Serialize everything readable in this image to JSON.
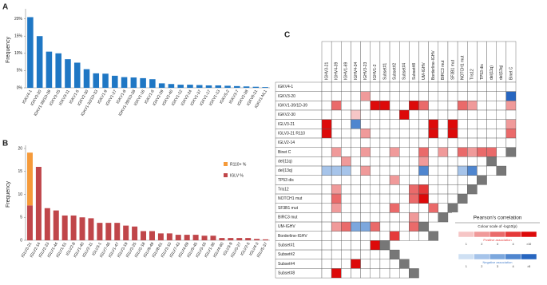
{
  "chart_data": [
    {
      "type": "bar",
      "panel_label": "A",
      "y_label": "Frequency",
      "color": "#1f77c4",
      "categories": [
        "IGKV4-1",
        "IGKV3-20",
        "IGKV1-39/1D-39",
        "IGKV3-15",
        "IGKV3-11",
        "IGKV1-5",
        "IGKV2-30",
        "IGKV1-33/1D-33",
        "IGKV1-9",
        "IGKV1-27",
        "IGKV1-8",
        "IGKV1-28/1D-28",
        "IGKV1-16",
        "IGKV1-6",
        "IGKV2-29",
        "IGKV2-40",
        "IGKV1-12",
        "IGKV2-24",
        "IGKV1-37",
        "IGKV1-17",
        "IGKV1-13",
        "IGKV5-2",
        "IGKV3-7",
        "IGKV2-28",
        "IGKV6-21",
        "IGKV1-NL1"
      ],
      "values": [
        20.5,
        15,
        10.5,
        10,
        8.3,
        7.3,
        5.4,
        4.2,
        4.1,
        3.5,
        3.1,
        3,
        2.8,
        2.5,
        1.3,
        1.1,
        0.9,
        0.9,
        0.8,
        0.7,
        0.7,
        0.6,
        0.5,
        0.4,
        0.3,
        0.2
      ],
      "ylim": [
        0,
        22
      ],
      "yticks": [
        {
          "value": 0,
          "label": "0%"
        },
        {
          "value": 5,
          "label": "5%"
        },
        {
          "value": 10,
          "label": "10%"
        },
        {
          "value": 15,
          "label": "15%"
        },
        {
          "value": 20,
          "label": "20%"
        }
      ]
    },
    {
      "type": "bar",
      "panel_label": "B",
      "y_label": "Frequency",
      "categories": [
        "IGLV3-21",
        "IGLV2-14",
        "IGLV2-23",
        "IGLV1-44",
        "IGLV1-51",
        "IGLV2-8",
        "IGLV1-40",
        "IGLV2-11",
        "IGLV3-1",
        "IGLV7-46",
        "IGLV1-47",
        "IGLV3-19",
        "IGLV3-25",
        "IGLV2-18",
        "IGLV9-49",
        "IGLV8-61",
        "IGLV3-10",
        "IGLV7-43",
        "IGLV4-69",
        "IGLV5-45",
        "IGLV3-16",
        "IGLV1-36",
        "IGLV4-60",
        "IGLV3-9",
        "IGLV3-27",
        "IGLV2-5",
        "IGLV4-3",
        "IGLV5-37"
      ],
      "series": [
        {
          "name": "R110+ %",
          "color": "#f59a3a",
          "values": [
            11.5,
            0,
            0,
            0,
            0,
            0,
            0,
            0,
            0,
            0,
            0,
            0,
            0,
            0,
            0,
            0,
            0,
            0,
            0,
            0,
            0,
            0,
            0,
            0,
            0,
            0,
            0,
            0
          ]
        },
        {
          "name": "IGLV %",
          "color": "#c0464a",
          "values": [
            7.6,
            16,
            7,
            6.5,
            5.4,
            5.4,
            5,
            4.8,
            3.8,
            3.8,
            3.8,
            3.2,
            3,
            2,
            2,
            1.5,
            1.5,
            1.2,
            1.2,
            1.2,
            1,
            1,
            0.5,
            0.5,
            0.5,
            0.5,
            0.3,
            0.2
          ]
        }
      ],
      "ylim": [
        0,
        20
      ],
      "yticks": [
        0,
        5,
        10,
        15,
        20
      ]
    },
    {
      "type": "heatmap",
      "panel_label": "C",
      "columns": [
        "IGHV3-21",
        "IGHV4-39",
        "IGHV1-69",
        "IGHV4-34",
        "IGHV3-23",
        "IGHV1-2",
        "Subset#1",
        "Subset#2",
        "Subset#4",
        "Subset#8",
        "UM-IGHV",
        "Borderline-IGHV",
        "BIRC3 mut",
        "SF3B1 mut",
        "NOTCH1 mut",
        "Tris12",
        "TP53 dis",
        "del(11q)",
        "del(13q)",
        "Binet C"
      ],
      "rows": [
        "IGKV4-1",
        "IGKV3-20",
        "IGKV1-39/1D-39",
        "IGKV2-30",
        "IGLV3-21",
        "IGLV3-21 R110",
        "IGLV2-14",
        "Binet C",
        "del(11q)",
        "del(13q)",
        "TP53 dis",
        "Tris12",
        "NOTCH1 mut",
        "SF3B1 mut",
        "BIRC3 mut",
        "UM-IGHV",
        "Borderline-IGHV",
        "Subset#1",
        "Subset#2",
        "Subset#4",
        "Subset#8"
      ],
      "values": [
        [
          0,
          0,
          0,
          0,
          0,
          0,
          0,
          0,
          0,
          0,
          0,
          0,
          0,
          0,
          0,
          0,
          0,
          0,
          0,
          0
        ],
        [
          0,
          0,
          0,
          0,
          2,
          0,
          0,
          0,
          0,
          0,
          0,
          0,
          0,
          0,
          0,
          0,
          0,
          0,
          0,
          -5
        ],
        [
          0,
          3,
          0,
          0,
          0,
          5,
          5,
          0,
          0,
          5,
          3,
          0,
          0,
          0,
          3,
          2,
          0,
          0,
          0,
          2
        ],
        [
          0,
          0,
          0,
          1,
          0,
          0,
          0,
          0,
          5,
          0,
          0,
          0,
          0,
          0,
          0,
          0,
          0,
          0,
          0,
          0
        ],
        [
          5,
          0,
          0,
          -4,
          0,
          0,
          0,
          0,
          0,
          0,
          0,
          5,
          0,
          5,
          0,
          0,
          0,
          0,
          0,
          2
        ],
        [
          5,
          0,
          0,
          0,
          2,
          0,
          0,
          0,
          0,
          0,
          0,
          5,
          0,
          5,
          0,
          0,
          0,
          0,
          0,
          3
        ],
        [
          0,
          0,
          0,
          0,
          0,
          0,
          0,
          0,
          0,
          0,
          0,
          0,
          0,
          0,
          0,
          0,
          0,
          0,
          0,
          0
        ],
        [
          0,
          2,
          0,
          0,
          2,
          0,
          0,
          2,
          0,
          0,
          3,
          0,
          2,
          0,
          3,
          2,
          3,
          3,
          0,
          null
        ],
        [
          0,
          0,
          2,
          0,
          0,
          0,
          0,
          0,
          0,
          0,
          2,
          0,
          0,
          0,
          0,
          0,
          0,
          null,
          null,
          null
        ],
        [
          -2,
          -2,
          -2,
          0,
          2,
          0,
          0,
          0,
          0,
          0,
          -4,
          0,
          0,
          0,
          -2,
          -4,
          0,
          0,
          null,
          null
        ],
        [
          0,
          0,
          0,
          0,
          0,
          0,
          0,
          2,
          0,
          0,
          0,
          0,
          0,
          0,
          0,
          0,
          null,
          null,
          null,
          null
        ],
        [
          0,
          2,
          0,
          0,
          0,
          0,
          0,
          0,
          0,
          3,
          4,
          0,
          0,
          0,
          0,
          null,
          null,
          null,
          null,
          null
        ],
        [
          0,
          3,
          0,
          0,
          0,
          0,
          0,
          0,
          0,
          3,
          5,
          0,
          0,
          0,
          null,
          null,
          null,
          null,
          null,
          null
        ],
        [
          0,
          2,
          0,
          0,
          0,
          0,
          0,
          3,
          0,
          0,
          0,
          3,
          0,
          null,
          null,
          null,
          null,
          null,
          null,
          null
        ],
        [
          0,
          0,
          0,
          0,
          0,
          0,
          0,
          0,
          0,
          2,
          0,
          0,
          null,
          null,
          null,
          null,
          null,
          null,
          null,
          null
        ],
        [
          0,
          2,
          3,
          -3,
          -3,
          3,
          0,
          0,
          0,
          3,
          null,
          null,
          null,
          null,
          null,
          null,
          null,
          null,
          null,
          null
        ],
        [
          0,
          0,
          0,
          0,
          0,
          0,
          0,
          4,
          0,
          0,
          0,
          null,
          null,
          null,
          null,
          null,
          null,
          null,
          null,
          null
        ],
        [
          0,
          0,
          0,
          0,
          0,
          5,
          null,
          null,
          null,
          null,
          null,
          null,
          null,
          null,
          null,
          null,
          null,
          null,
          null,
          null
        ],
        [
          0,
          0,
          0,
          0,
          0,
          0,
          0,
          null,
          null,
          null,
          null,
          null,
          null,
          null,
          null,
          null,
          null,
          null,
          null,
          null
        ],
        [
          0,
          0,
          0,
          5,
          0,
          0,
          0,
          0,
          null,
          null,
          null,
          null,
          null,
          null,
          null,
          null,
          null,
          null,
          null,
          null
        ],
        [
          0,
          5,
          0,
          0,
          0,
          0,
          0,
          0,
          0,
          null,
          null,
          null,
          null,
          null,
          null,
          null,
          null,
          null,
          null,
          null
        ]
      ],
      "pos_colors": [
        "#f6c6c6",
        "#f09a9a",
        "#ea6a6a",
        "#e53a3a",
        "#dd0a0a"
      ],
      "neg_colors": [
        "#cfe0f3",
        "#a6c4ea",
        "#7ca7dd",
        "#4f86cf",
        "#2766c0"
      ],
      "legend": {
        "title": "Pearson's correlation",
        "subtitle": "Colour scale of -log10(p)",
        "positive_label": "Positive association",
        "negative_label": "Negative association",
        "positive_ticks": [
          1,
          2,
          3,
          4,
          {
            "value": 10,
            "label": ">10"
          }
        ],
        "negative_ticks": [
          1,
          2,
          3,
          4,
          {
            "value": 5,
            "label": ">5"
          }
        ]
      }
    }
  ]
}
